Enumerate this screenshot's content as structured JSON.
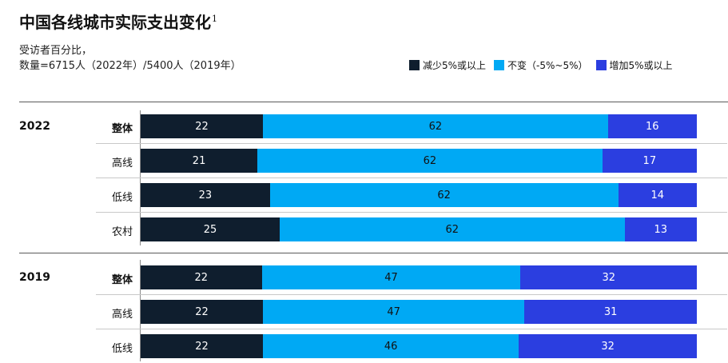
{
  "title": "中国各线城市实际支出变化",
  "title_footnote": "1",
  "subtitle_line1": "受访者百分比，",
  "subtitle_line2": "数量=6715人（2022年）/5400人（2019年）",
  "colors": {
    "decrease": "#0f1e2e",
    "unchanged": "#00a9f4",
    "increase": "#2b3ee0"
  },
  "legend": [
    {
      "key": "decrease",
      "label": "减少5%或以上"
    },
    {
      "key": "unchanged",
      "label": "不变（-5%~5%）"
    },
    {
      "key": "increase",
      "label": "增加5%或以上"
    }
  ],
  "chart_data": {
    "type": "bar",
    "orientation": "horizontal",
    "stacked": true,
    "unit": "%",
    "series_keys": [
      "decrease",
      "unchanged",
      "increase"
    ],
    "groups": [
      {
        "year": "2022",
        "rows": [
          {
            "label": "整体",
            "bold": true,
            "values": [
              22,
              62,
              16
            ]
          },
          {
            "label": "高线",
            "bold": false,
            "values": [
              21,
              62,
              17
            ]
          },
          {
            "label": "低线",
            "bold": false,
            "values": [
              23,
              62,
              14
            ]
          },
          {
            "label": "农村",
            "bold": false,
            "values": [
              25,
              62,
              13
            ]
          }
        ]
      },
      {
        "year": "2019",
        "rows": [
          {
            "label": "整体",
            "bold": true,
            "values": [
              22,
              47,
              32
            ]
          },
          {
            "label": "高线",
            "bold": false,
            "values": [
              22,
              47,
              31
            ]
          },
          {
            "label": "低线",
            "bold": false,
            "values": [
              22,
              46,
              32
            ]
          }
        ]
      }
    ]
  }
}
